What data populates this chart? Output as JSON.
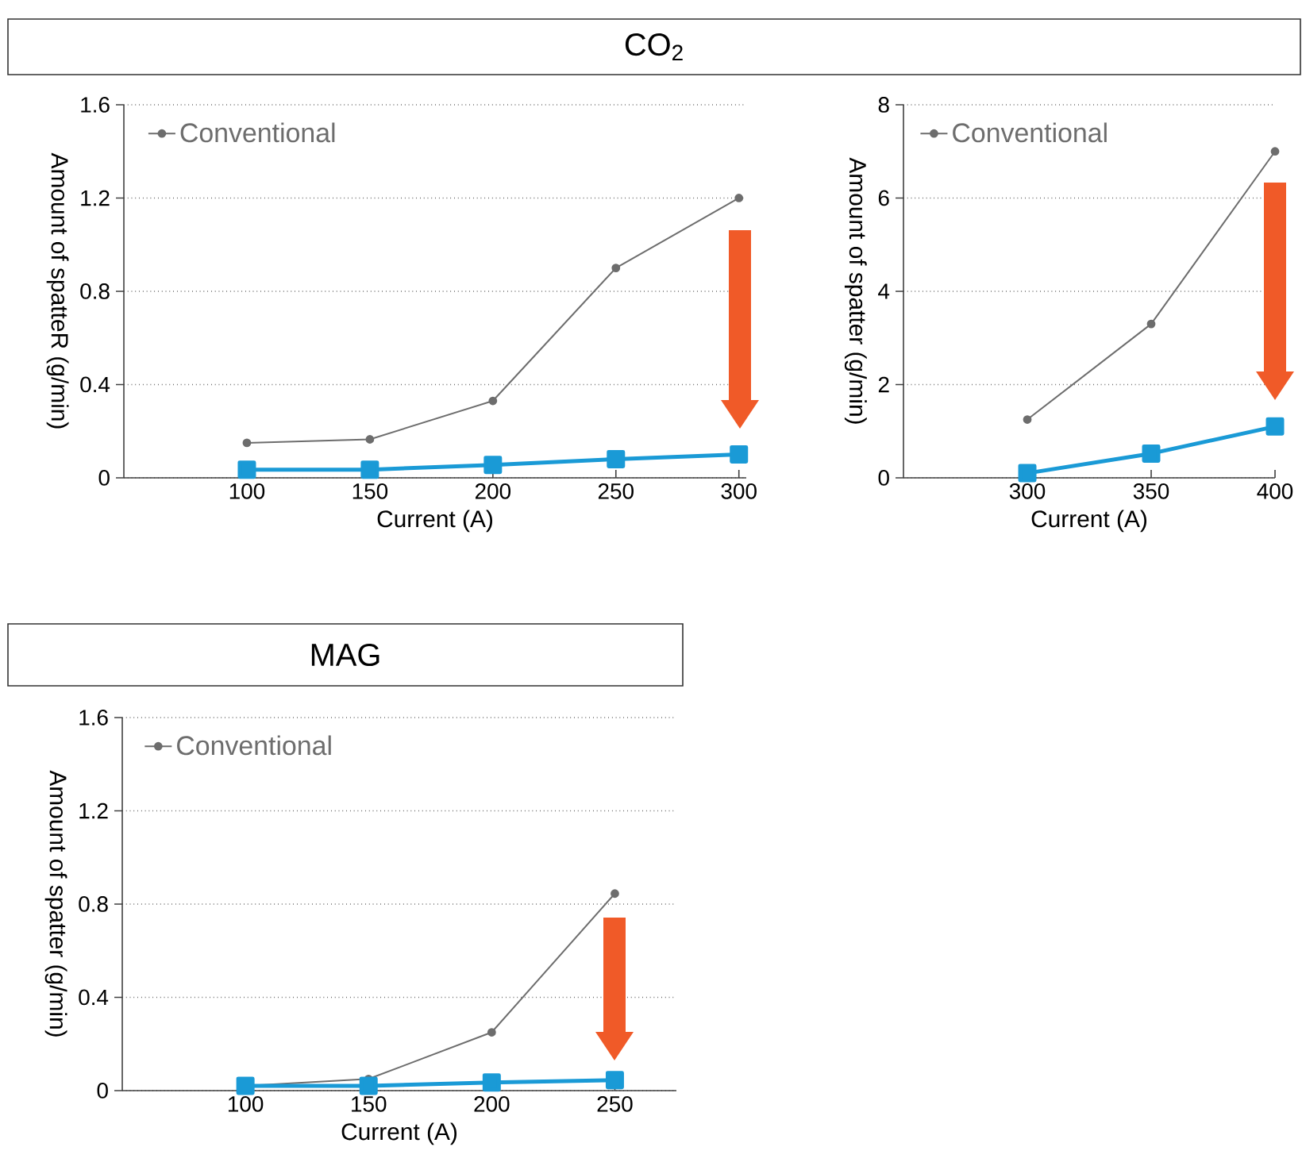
{
  "chart_data": [
    {
      "type": "line",
      "title": "CO$_{2}$",
      "xlabel": "Current (A)",
      "ylabel": "Amount of spatteR (g/min)",
      "x": [
        100,
        150,
        200,
        250,
        300
      ],
      "xlim": [
        50,
        303
      ],
      "xticks": [
        100,
        150,
        200,
        250,
        300
      ],
      "ylim": [
        0,
        1.6
      ],
      "yticks": [
        0,
        0.4,
        0.8,
        1.2,
        1.6
      ],
      "grid": "y",
      "legend": "top left",
      "series": [
        {
          "name": "Conventional",
          "color": "#6d6d6d",
          "marker": "circle",
          "values": [
            0.15,
            0.165,
            0.33,
            0.9,
            1.2
          ]
        },
        {
          "color": "#1a9ad6",
          "marker": "square",
          "values": [
            0.035,
            0.035,
            0.055,
            0.08,
            0.1
          ]
        }
      ]
    },
    {
      "type": "line",
      "xlabel": "Current (A)",
      "ylabel": "Amount of spatter (g/min)",
      "x": [
        300,
        350,
        400
      ],
      "xlim": [
        250,
        400
      ],
      "xticks": [
        300,
        350,
        400
      ],
      "ylim": [
        0,
        8
      ],
      "yticks": [
        0,
        2,
        4,
        6,
        8
      ],
      "grid": "y",
      "legend": "top left",
      "series": [
        {
          "name": "Conventional",
          "color": "#6d6d6d",
          "marker": "circle",
          "values": [
            1.25,
            3.3,
            7.0
          ]
        },
        {
          "color": "#1a9ad6",
          "marker": "square",
          "values": [
            0.1,
            0.52,
            1.1
          ]
        }
      ]
    },
    {
      "type": "line",
      "title": "MAG",
      "xlabel": "Current (A)",
      "ylabel": "Amount of spatter (g/min)",
      "x": [
        100,
        150,
        200,
        250
      ],
      "xlim": [
        50,
        275
      ],
      "xticks": [
        100,
        150,
        200,
        250
      ],
      "ylim": [
        0,
        1.6
      ],
      "yticks": [
        0,
        0.4,
        0.8,
        1.2,
        1.6
      ],
      "grid": "y",
      "legend": "top left",
      "series": [
        {
          "name": "Conventional",
          "color": "#6d6d6d",
          "marker": "circle",
          "values": [
            0.02,
            0.05,
            0.25,
            0.845
          ]
        },
        {
          "color": "#1a9ad6",
          "marker": "square",
          "values": [
            0.02,
            0.02,
            0.035,
            0.045
          ]
        }
      ]
    }
  ]
}
